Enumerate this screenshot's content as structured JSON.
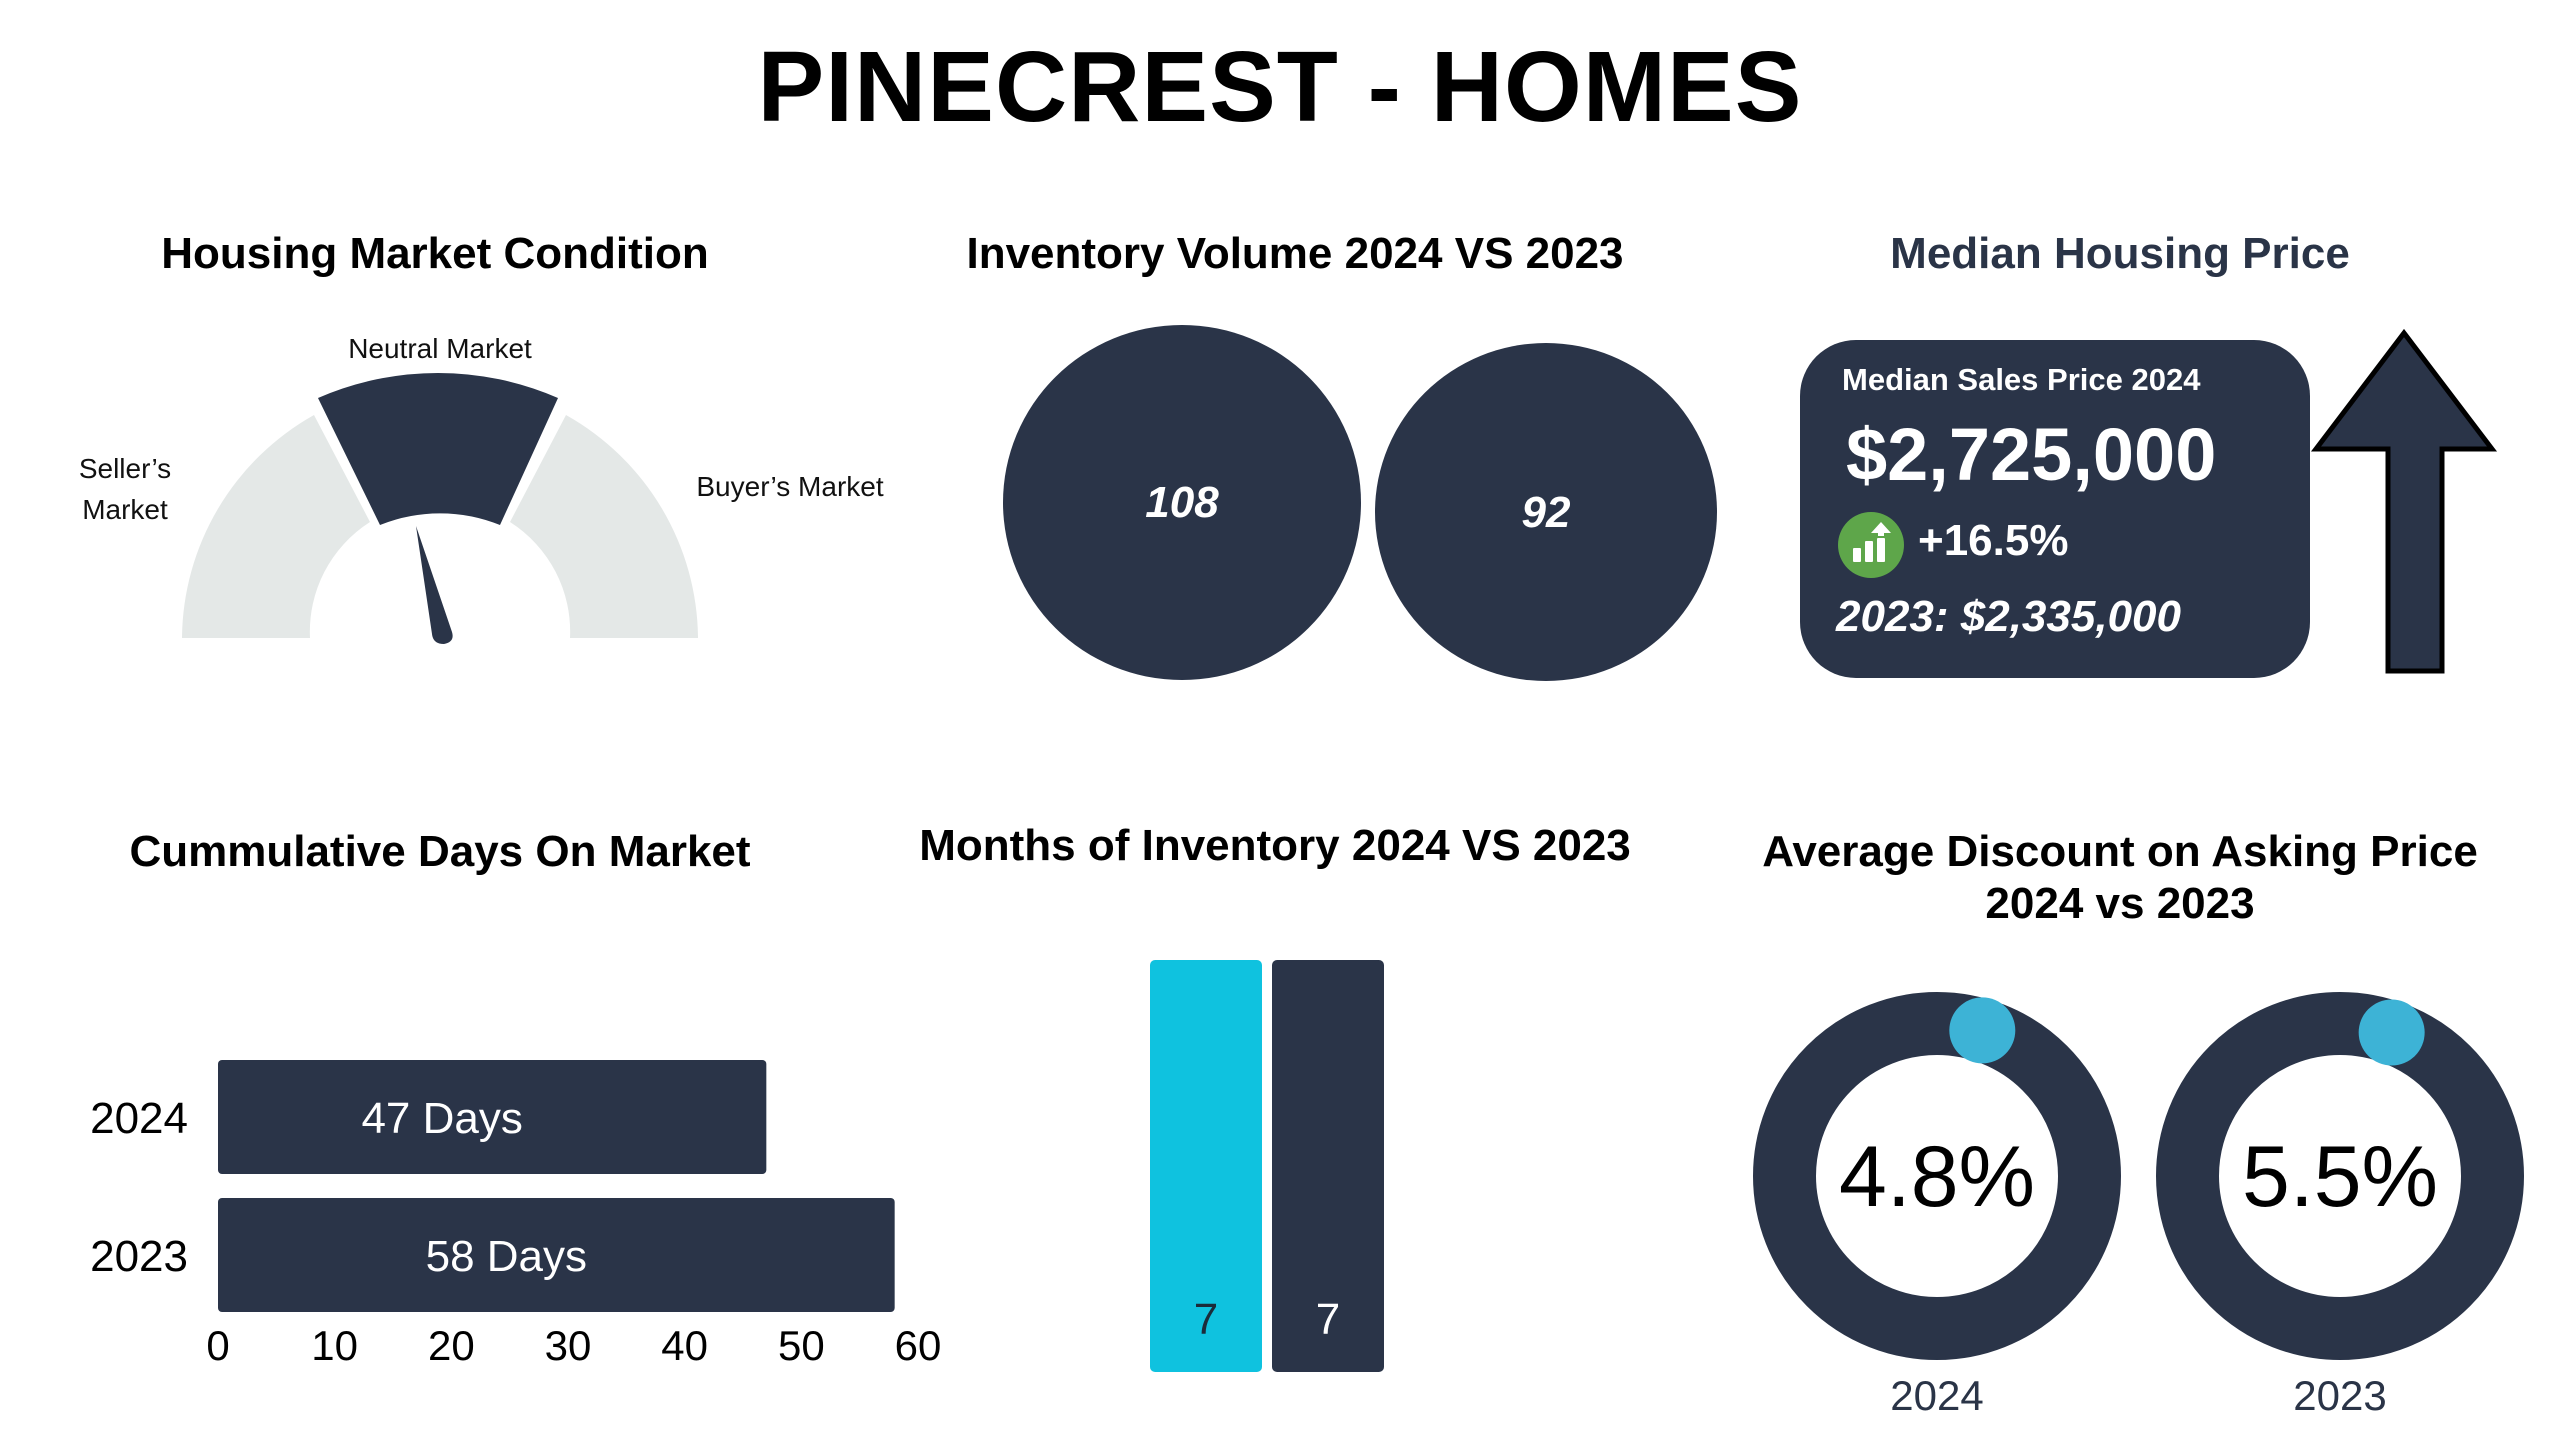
{
  "header": {
    "title": "PINECREST - HOMES"
  },
  "colors": {
    "navy": "#2a3448",
    "cyan": "#0fc2df",
    "light_gray": "#e4e8e7",
    "green": "#5ea64a",
    "marker_blue": "#3db3d6"
  },
  "market_condition": {
    "title": "Housing Market Condition",
    "labels": {
      "sellers_line1": "Seller’s",
      "sellers_line2": "Market",
      "neutral": "Neutral Market",
      "buyers": "Buyer’s Market"
    },
    "active_segment": "Neutral Market",
    "needle_position": 0.53
  },
  "inventory_volume": {
    "title": "Inventory Volume 2024 VS 2023",
    "values": [
      "108",
      "92"
    ]
  },
  "median_price": {
    "title": "Median Housing Price",
    "card_caption": "Median Sales Price 2024",
    "price_2024": "$2,725,000",
    "change": "+16.5%",
    "price_2023": "2023: $2,335,000",
    "trend_icon": "bar-chart-up-icon",
    "arrow_icon": "up-arrow-icon"
  },
  "days_on_market": {
    "title": "Cummulative Days On Market"
  },
  "months_inventory": {
    "title": "Months of Inventory 2024 VS 2023"
  },
  "discount": {
    "title_line1": "Average Discount on Asking Price",
    "title_line2": "2024 vs 2023"
  },
  "chart_data": [
    {
      "type": "bar",
      "orientation": "horizontal",
      "title": "Cummulative Days On Market",
      "categories": [
        "2024",
        "2023"
      ],
      "values": [
        47,
        58
      ],
      "data_labels": [
        "47  Days",
        "58 Days"
      ],
      "xlim": [
        0,
        60
      ],
      "xticks": [
        "0",
        "10",
        "20",
        "30",
        "40",
        "50",
        "60"
      ]
    },
    {
      "type": "bar",
      "title": "Months of Inventory 2024 VS 2023",
      "series": [
        {
          "values": [
            7
          ],
          "color": "#0fc2df"
        },
        {
          "values": [
            7
          ],
          "color": "#2a3448"
        }
      ],
      "data_labels": [
        "7",
        "7"
      ]
    },
    {
      "type": "pie",
      "title": "Average Discount on Asking Price 2024 vs 2023",
      "items": [
        {
          "label": "2024",
          "value": 4.8,
          "display": "4.8%"
        },
        {
          "label": "2023",
          "value": 5.5,
          "display": "5.5%"
        }
      ]
    }
  ]
}
